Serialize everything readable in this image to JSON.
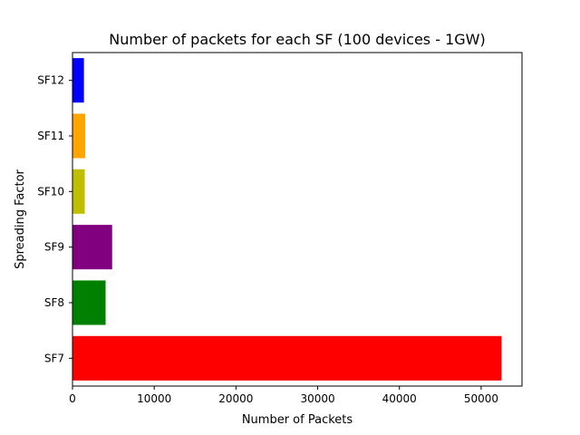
{
  "chart_data": {
    "type": "bar",
    "orientation": "horizontal",
    "title": "Number of packets for each SF (100 devices - 1GW)",
    "xlabel": "Number of Packets",
    "ylabel": "Spreading Factor",
    "categories": [
      "SF7",
      "SF8",
      "SF9",
      "SF10",
      "SF11",
      "SF12"
    ],
    "values": [
      52500,
      4050,
      4850,
      1500,
      1550,
      1400
    ],
    "colors": [
      "#ff0000",
      "#008000",
      "#800080",
      "#bfbf00",
      "#ffa500",
      "#0000ff"
    ],
    "xlim": [
      0,
      55000
    ],
    "xticks": [
      0,
      10000,
      20000,
      30000,
      40000,
      50000
    ],
    "grid": false,
    "legend": "none"
  }
}
